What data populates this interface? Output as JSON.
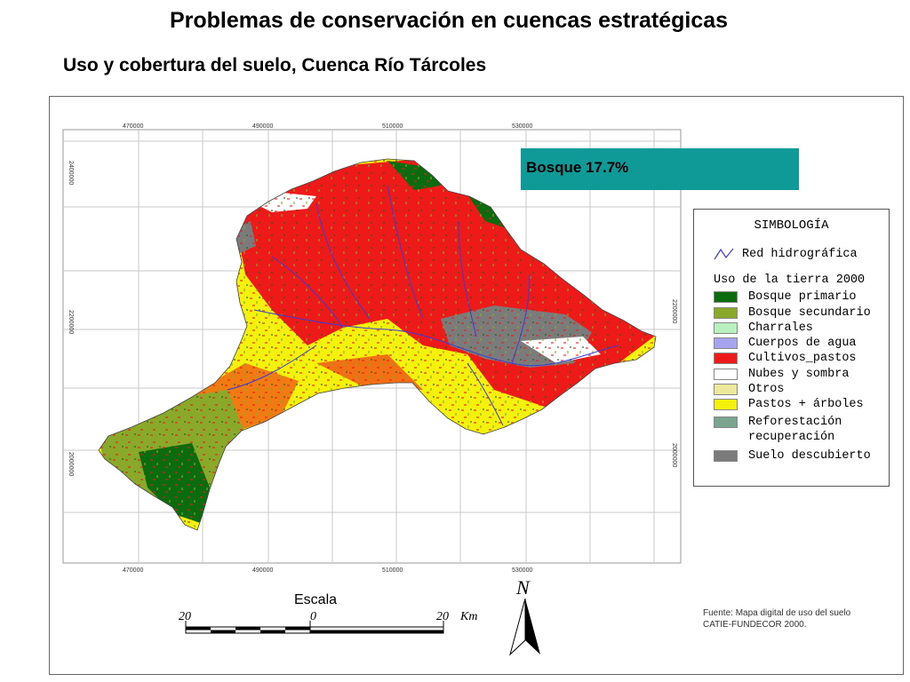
{
  "title": "Problemas de conservación en cuencas estratégicas",
  "subtitle": "Uso y cobertura del suelo, Cuenca Río Tárcoles",
  "bosque_label": "Bosque 17.7%",
  "grid": {
    "top_labels": [
      "470000",
      "490000",
      "510000",
      "530000"
    ],
    "bottom_labels": [
      "470000",
      "490000",
      "510000",
      "530000"
    ],
    "left_labels": [
      "2400000",
      "2200000",
      "2000000"
    ],
    "right_labels": [
      "2200000",
      "2000000"
    ]
  },
  "legend": {
    "title": "SIMBOLOGÍA",
    "hydro_label": "Red hidrográfica",
    "subtitle": "Uso de la tierra 2000",
    "items": [
      {
        "label": "Bosque primario",
        "color": "#0b6b0f"
      },
      {
        "label": "Bosque secundario",
        "color": "#8aa82a"
      },
      {
        "label": "Charrales",
        "color": "#b8f0c0"
      },
      {
        "label": "Cuerpos de agua",
        "color": "#a7a4ef"
      },
      {
        "label": "Cultivos_pastos",
        "color": "#ee1a1a"
      },
      {
        "label": "Nubes y sombra",
        "color": "#ffffff"
      },
      {
        "label": "Otros",
        "color": "#ede89a"
      },
      {
        "label": "Pastos + árboles",
        "color": "#f4f10c"
      },
      {
        "label": "Reforestación",
        "color": "#7aa48e"
      },
      {
        "label": "recuperación",
        "color": ""
      },
      {
        "label": "Suelo descubierto",
        "color": "#7b7b7b"
      }
    ]
  },
  "scale": {
    "title": "Escala",
    "left": "20",
    "center": "0",
    "right": "20",
    "unit": "Km"
  },
  "north": "N",
  "source": {
    "line1": "Fuente:  Mapa digital de uso del suelo",
    "line2": "CATIE-FUNDECOR 2000."
  }
}
